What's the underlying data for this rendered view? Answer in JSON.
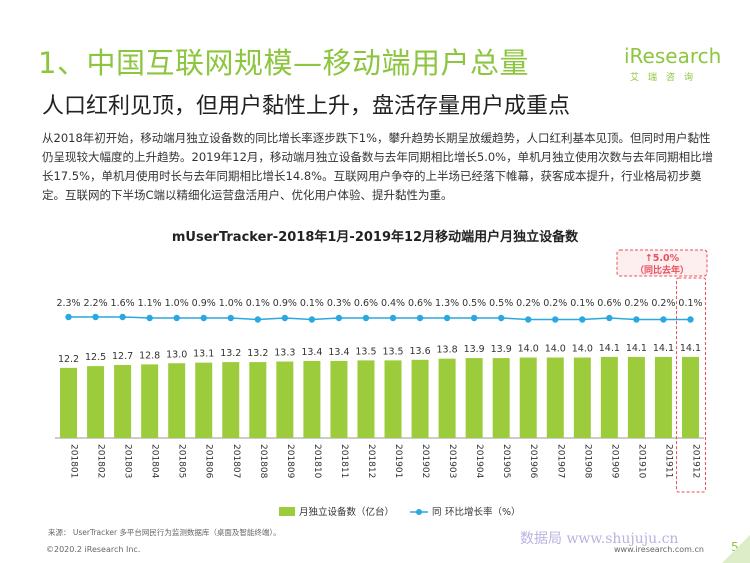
{
  "header": {
    "title": "1、中国互联网规模—移动端用户总量",
    "subtitle": "人口红利见顶，但用户黏性上升，盘活存量用户成重点"
  },
  "logo": {
    "wordmark": "iResearch",
    "chinese": "艾瑞咨询",
    "accent_color": "#8cc63e"
  },
  "intro_text": "从2018年初开始，移动端月独立设备数的同比增长率逐步跌下1%，攀升趋势长期呈放缓趋势，人口红利基本见顶。但同时用户黏性仍呈现较大幅度的上升趋势。2019年12月，移动端月独立设备数与去年同期相比增长5.0%，单机月独立使用次数与去年同期相比增长17.5%，单机月使用时长与去年同期相比增长14.8%。互联网用户争夺的上半场已经落下帷幕，获客成本提升，行业格局初步奠定。互联网的下半场C端以精细化运营盘活用户、优化用户体验、提升黏性为重。",
  "chart_data": {
    "type": "bar",
    "title": "mUserTracker-2018年1月-2019年12月移动端用户月独立设备数",
    "categories": [
      "201801",
      "201802",
      "201803",
      "201804",
      "201805",
      "201806",
      "201807",
      "201808",
      "201809",
      "201810",
      "201811",
      "201812",
      "201901",
      "201902",
      "201903",
      "201904",
      "201905",
      "201906",
      "201907",
      "201908",
      "201909",
      "201910",
      "201911",
      "201912"
    ],
    "series": [
      {
        "name": "月独立设备数（亿台）",
        "type": "bar",
        "color": "#9ccc3c",
        "values": [
          12.2,
          12.5,
          12.7,
          12.8,
          13.0,
          13.1,
          13.2,
          13.2,
          13.3,
          13.4,
          13.4,
          13.5,
          13.5,
          13.6,
          13.8,
          13.9,
          13.9,
          14.0,
          14.0,
          14.0,
          14.1,
          14.1,
          14.1,
          14.1
        ]
      },
      {
        "name": "环比增长率（%）",
        "type": "line",
        "color": "#2aa8e0",
        "values": [
          2.3,
          2.2,
          1.6,
          1.1,
          1.0,
          0.9,
          1.0,
          0.1,
          0.9,
          0.1,
          0.3,
          0.6,
          0.4,
          0.6,
          1.3,
          0.5,
          0.5,
          0.2,
          0.2,
          0.1,
          0.6,
          0.2,
          0.2,
          0.1
        ],
        "labels": [
          "2.3%",
          "2.2%",
          "1.6%",
          "1.1%",
          "1.0%",
          "0.9%",
          "1.0%",
          "0.1%",
          "0.9%",
          "0.1%",
          "0.3%",
          "0.6%",
          "0.4%",
          "0.6%",
          "1.3%",
          "0.5%",
          "0.5%",
          "0.2%",
          "0.2%",
          "0.1%",
          "0.6%",
          "0.2%",
          "0.2%",
          "0.1%"
        ]
      }
    ],
    "legend": {
      "bar_label": "月独立设备数（亿台）",
      "line_prefix": "同",
      "line_label": "环比增长率（%）"
    },
    "annotation": {
      "line1": "↑5.0%",
      "line2": "（同比去年）",
      "color": "#e8505b"
    }
  },
  "footer": {
    "source": "来源： UserTracker 多平台网民行为监测数据库（桌面及智能终端）。",
    "copyright": "©2020.2 iResearch Inc.",
    "website": "www.iresearch.com.cn",
    "watermark": "数据局 www.shujuju.cn",
    "page_number": "5"
  }
}
